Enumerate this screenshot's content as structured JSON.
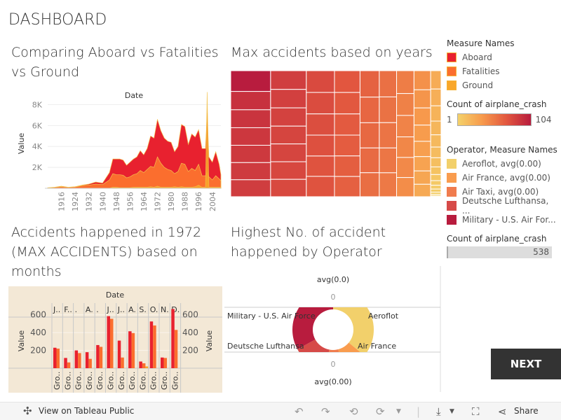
{
  "dashboard_title": "DASHBOARD",
  "next_label": "NEXT",
  "colors": {
    "aboard": "#e8212f",
    "fatalities": "#fb6e2e",
    "ground": "#f9a72a",
    "aeroflot": "#f2d06b",
    "air_france": "#f99c4e",
    "air_taxi": "#f07c4e",
    "lufthansa": "#d64a48",
    "military": "#b81c3e",
    "bar_bg": "#f3e8d6"
  },
  "legend": {
    "measure_title": "Measure Names",
    "measures": [
      "Aboard",
      "Fatalities",
      "Ground"
    ],
    "count_title": "Count of airplane_crash",
    "count_min": "1",
    "count_max": "104",
    "operator_title": "Operator, Measure Names",
    "operators": [
      "Aeroflot, avg(0.00)",
      "Air France, avg(0.00)",
      "Air Taxi, avg(0.00)",
      "Deutsche Lufthansa, ...",
      "Military - U.S. Air For..."
    ],
    "count2_title": "Count of airplane_crash",
    "count2_value": "538"
  },
  "chart_data": [
    {
      "type": "area",
      "title": "Comparing Aboard vs Fatalities vs Ground",
      "xlabel": "Date",
      "ylabel": "Value",
      "ylim": [
        0,
        9500
      ],
      "y_ticks": [
        "2K",
        "4K",
        "6K",
        "8K"
      ],
      "x_ticks": [
        "1916",
        "1924",
        "1932",
        "1940",
        "1948",
        "1956",
        "1964",
        "1972",
        "1980",
        "1988",
        "1996",
        "2004"
      ],
      "x": [
        1908,
        1912,
        1916,
        1920,
        1924,
        1928,
        1932,
        1936,
        1940,
        1944,
        1946,
        1948,
        1950,
        1952,
        1954,
        1956,
        1958,
        1960,
        1962,
        1964,
        1966,
        1968,
        1970,
        1972,
        1974,
        1976,
        1978,
        1980,
        1982,
        1984,
        1986,
        1988,
        1990,
        1992,
        1994,
        1996,
        1998,
        2000,
        2001,
        2002,
        2004,
        2006,
        2008,
        2009
      ],
      "series": [
        {
          "name": "Aboard",
          "values": [
            50,
            100,
            200,
            100,
            150,
            300,
            400,
            600,
            500,
            1500,
            2800,
            2800,
            2800,
            2700,
            2200,
            2500,
            2800,
            3000,
            3600,
            3200,
            3800,
            5000,
            4800,
            6600,
            5500,
            4800,
            4500,
            4400,
            3500,
            4000,
            6100,
            5900,
            4200,
            5200,
            4900,
            5600,
            3800,
            3800,
            7200,
            3000,
            2500,
            3500,
            2300,
            1300
          ]
        },
        {
          "name": "Fatalities",
          "values": [
            40,
            80,
            150,
            80,
            120,
            250,
            300,
            400,
            350,
            800,
            1400,
            1300,
            1300,
            1250,
            1000,
            1100,
            1300,
            1400,
            1700,
            1500,
            1800,
            2100,
            2000,
            3000,
            2400,
            2000,
            1800,
            1700,
            1400,
            1600,
            2400,
            2300,
            1600,
            1900,
            1700,
            2300,
            1200,
            1200,
            1500,
            1100,
            800,
            1200,
            900,
            700
          ]
        },
        {
          "name": "Ground",
          "values": [
            0,
            0,
            0,
            0,
            0,
            0,
            0,
            0,
            0,
            0,
            100,
            100,
            50,
            50,
            50,
            50,
            100,
            100,
            100,
            100,
            100,
            150,
            100,
            200,
            100,
            100,
            100,
            100,
            150,
            100,
            150,
            100,
            100,
            100,
            150,
            300,
            100,
            100,
            9200,
            100,
            100,
            100,
            100,
            100
          ]
        }
      ]
    },
    {
      "type": "treemap",
      "title": "Max accidents based on years",
      "color_range": [
        1,
        104
      ],
      "values": [
        104,
        92,
        90,
        88,
        87,
        86,
        85,
        84,
        83,
        82,
        80,
        80,
        79,
        78,
        77,
        76,
        75,
        74,
        72,
        72,
        70,
        69,
        68,
        67,
        66,
        65,
        64,
        62,
        61,
        60,
        58,
        57,
        56,
        55,
        54,
        52,
        50,
        48,
        47,
        45,
        44,
        42,
        40,
        38,
        36,
        34,
        32,
        30,
        28,
        26,
        24,
        22,
        20,
        18,
        16,
        14,
        12,
        10,
        8,
        6,
        5,
        4,
        3,
        2,
        1
      ]
    },
    {
      "type": "bar",
      "title": "Accidents happened in 1972 (MAX ACCIDENTS) based on months",
      "xlabel": "Date",
      "ylabel": "Value",
      "categories": [
        "J..",
        "F..",
        ".",
        "A.",
        ".",
        "J..",
        "J..",
        "A.",
        "S.",
        "O.",
        "N.",
        "D."
      ],
      "sub_label": "Gro..",
      "ylim": [
        0,
        700
      ],
      "y_ticks": [
        "200",
        "400",
        "600"
      ],
      "series": [
        {
          "name": "Aboard",
          "values": [
            230,
            115,
            200,
            180,
            260,
            585,
            310,
            415,
            75,
            525,
            120,
            665
          ]
        },
        {
          "name": "Fatalities",
          "values": [
            220,
            65,
            170,
            105,
            240,
            555,
            120,
            395,
            55,
            480,
            115,
            430
          ]
        },
        {
          "name": "Ground",
          "values": [
            0,
            0,
            0,
            0,
            0,
            0,
            0,
            0,
            20,
            0,
            0,
            0
          ]
        }
      ]
    },
    {
      "type": "pie",
      "title": "Highest No. of accident happened by Operator",
      "top_label": "avg(0.0)",
      "bottom_label": "avg(0.00)",
      "top_tick": "0",
      "bottom_tick": "0",
      "labels": [
        "Aeroflot",
        "Air France",
        "Air Taxi",
        "Deutsche Lufthansa",
        "Military - U.S. Air Force"
      ],
      "values": [
        36,
        10,
        7,
        14,
        33
      ]
    }
  ],
  "footer": {
    "view_label": "View on Tableau Public",
    "share_label": "Share"
  }
}
